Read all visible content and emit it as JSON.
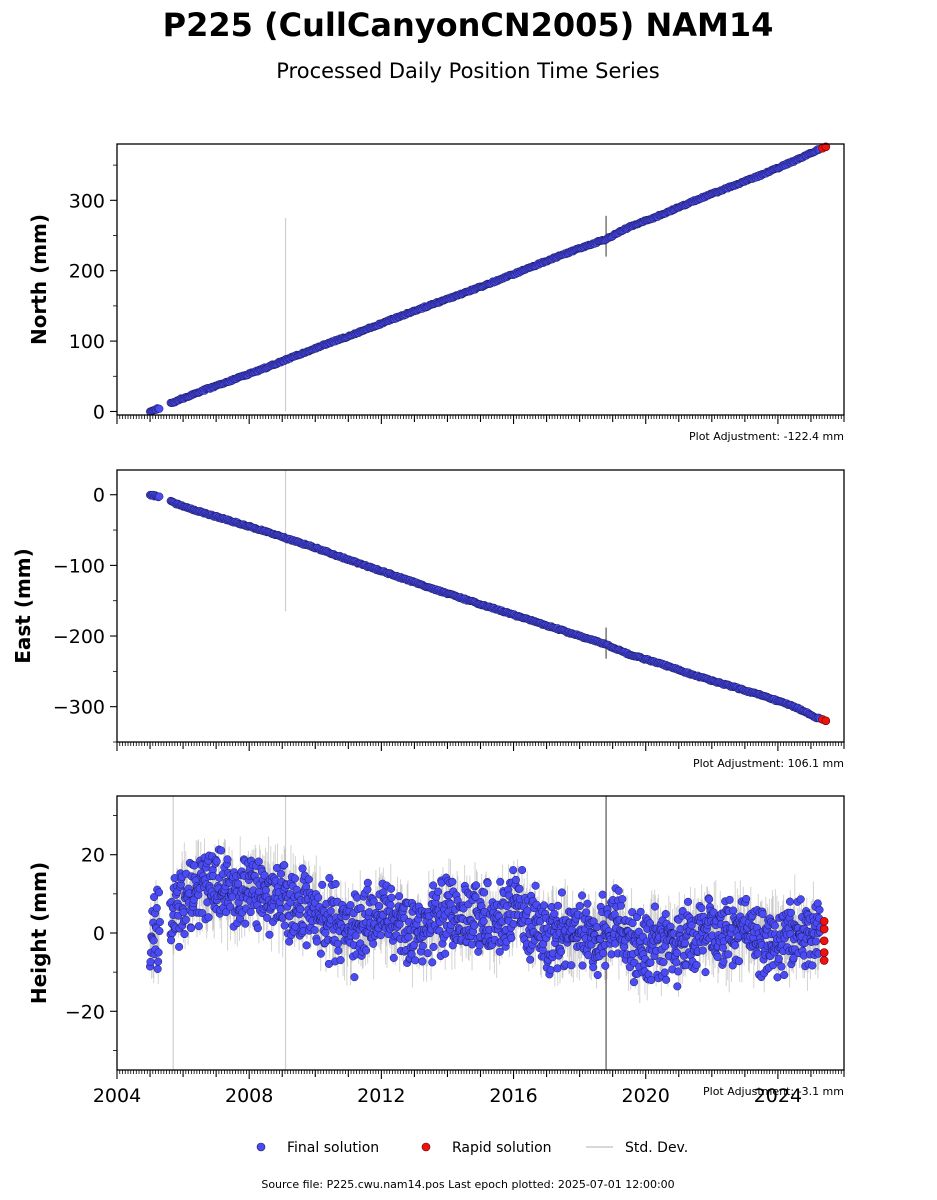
{
  "title": "P225 (CullCanyonCN2005) NAM14",
  "subtitle": "Processed Daily Position Time Series",
  "source_text": "Source file: P225.cwu.nam14.pos  Last epoch plotted: 2025-07-01 12:00:00",
  "legend": [
    {
      "label": "Final solution",
      "color": "#4b4bf5"
    },
    {
      "label": "Rapid solution",
      "color": "#ee1111"
    },
    {
      "label": "Std. Dev.",
      "color": "#cccccc"
    }
  ],
  "x_tick_labels": [
    "2004",
    "2008",
    "2012",
    "2016",
    "2020",
    "2024"
  ],
  "chart_data": [
    {
      "type": "scatter",
      "ylabel": "North (mm)",
      "adjustment": "Plot Adjustment: -122.4 mm",
      "xlim": [
        2004.0,
        2026.0
      ],
      "ylim": [
        -5,
        380
      ],
      "yticks": [
        0,
        100,
        200,
        300
      ],
      "ytick_labels": [
        "0",
        "100",
        "200",
        "300"
      ],
      "series": [
        {
          "name": "Final solution",
          "x": [
            2005.0,
            2005.4,
            2005.8,
            2006.5,
            2007.5,
            2008.5,
            2009.2,
            2010.0,
            2011.0,
            2012.0,
            2013.0,
            2014.0,
            2015.0,
            2016.0,
            2017.0,
            2018.0,
            2018.8,
            2019.5,
            2020.5,
            2021.5,
            2022.5,
            2023.5,
            2024.5,
            2025.2
          ],
          "y": [
            0,
            7,
            15,
            28,
            45,
            62,
            75,
            90,
            107,
            125,
            143,
            160,
            177,
            195,
            214,
            232,
            245,
            262,
            280,
            300,
            318,
            336,
            356,
            372
          ]
        },
        {
          "name": "Rapid solution",
          "x": [
            2025.35,
            2025.45
          ],
          "y": [
            374,
            376
          ]
        }
      ],
      "stddev_spikes": [
        {
          "x": 2009.1,
          "y0": 0,
          "y1": 275
        },
        {
          "x": 2018.8,
          "y0": 220,
          "y1": 278
        }
      ]
    },
    {
      "type": "scatter",
      "ylabel": "East (mm)",
      "adjustment": "Plot Adjustment: 106.1 mm",
      "xlim": [
        2004.0,
        2026.0
      ],
      "ylim": [
        -350,
        35
      ],
      "yticks": [
        0,
        -100,
        -200,
        -300
      ],
      "ytick_labels": [
        "0",
        "−100",
        "−200",
        "−300"
      ],
      "series": [
        {
          "name": "Final solution",
          "x": [
            2005.0,
            2005.4,
            2005.8,
            2006.5,
            2007.5,
            2008.5,
            2009.2,
            2010.0,
            2011.0,
            2012.0,
            2013.0,
            2014.0,
            2015.0,
            2016.0,
            2017.0,
            2018.0,
            2018.8,
            2019.5,
            2020.5,
            2021.5,
            2022.5,
            2023.5,
            2024.5,
            2025.2
          ],
          "y": [
            0,
            -4,
            -13,
            -24,
            -38,
            -52,
            -63,
            -75,
            -92,
            -108,
            -124,
            -140,
            -155,
            -170,
            -185,
            -200,
            -212,
            -226,
            -240,
            -256,
            -270,
            -284,
            -300,
            -316
          ]
        },
        {
          "name": "Rapid solution",
          "x": [
            2025.35,
            2025.45
          ],
          "y": [
            -318,
            -320
          ]
        }
      ],
      "stddev_spikes": [
        {
          "x": 2009.1,
          "y0": -165,
          "y1": 35
        },
        {
          "x": 2018.8,
          "y0": -232,
          "y1": -188
        }
      ]
    },
    {
      "type": "scatter",
      "ylabel": "Height (mm)",
      "adjustment": "Plot Adjustment: -3.1 mm",
      "xlim": [
        2004.0,
        2026.0
      ],
      "ylim": [
        -35,
        35
      ],
      "yticks": [
        -20,
        0,
        20
      ],
      "ytick_labels": [
        "−20",
        "0",
        "20"
      ],
      "series": [
        {
          "name": "Final solution",
          "x": [
            2005.0,
            2005.5,
            2006.0,
            2006.5,
            2007.0,
            2007.5,
            2008.0,
            2008.5,
            2009.0,
            2009.5,
            2010.0,
            2010.5,
            2011.0,
            2011.5,
            2012.0,
            2012.5,
            2013.0,
            2013.5,
            2014.0,
            2014.5,
            2015.0,
            2015.5,
            2016.0,
            2016.5,
            2017.0,
            2017.5,
            2018.0,
            2018.5,
            2019.0,
            2019.5,
            2020.0,
            2020.5,
            2021.0,
            2021.5,
            2022.0,
            2022.5,
            2023.0,
            2023.5,
            2024.0,
            2024.5,
            2025.0
          ],
          "y": [
            -2,
            3,
            8,
            11,
            12,
            10,
            12,
            11,
            8,
            7,
            6,
            3,
            1,
            2,
            4,
            1,
            0,
            2,
            5,
            3,
            4,
            1,
            9,
            3,
            -2,
            0,
            0,
            -1,
            2,
            -3,
            -4,
            -2,
            -3,
            0,
            1,
            -1,
            1,
            -1,
            -2,
            1,
            -1
          ]
        },
        {
          "name": "Rapid solution",
          "x": [
            2025.4,
            2025.4,
            2025.4,
            2025.4,
            2025.4
          ],
          "y": [
            3,
            1,
            -2,
            -5,
            -7
          ]
        }
      ],
      "stddev_spikes": [
        {
          "x": 2005.7,
          "y0": -35,
          "y1": 35
        },
        {
          "x": 2009.1,
          "y0": -35,
          "y1": 35
        },
        {
          "x": 2018.8,
          "y0": -35,
          "y1": 35
        }
      ]
    }
  ]
}
